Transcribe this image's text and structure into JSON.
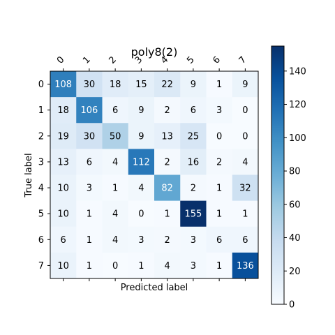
{
  "chart_data": {
    "type": "heatmap",
    "title": "poly8(2)",
    "xlabel": "Predicted label",
    "ylabel": "True label",
    "x_tick_labels": [
      "0",
      "1",
      "2",
      "3",
      "4",
      "5",
      "6",
      "7"
    ],
    "y_tick_labels": [
      "0",
      "1",
      "2",
      "3",
      "4",
      "5",
      "6",
      "7"
    ],
    "matrix": [
      [
        108,
        30,
        18,
        15,
        22,
        9,
        1,
        9
      ],
      [
        18,
        106,
        6,
        9,
        2,
        6,
        3,
        0
      ],
      [
        19,
        30,
        50,
        9,
        13,
        25,
        0,
        0
      ],
      [
        13,
        6,
        4,
        112,
        2,
        16,
        2,
        4
      ],
      [
        10,
        3,
        1,
        4,
        82,
        2,
        1,
        32
      ],
      [
        10,
        1,
        4,
        0,
        1,
        155,
        1,
        1
      ],
      [
        6,
        1,
        4,
        3,
        2,
        3,
        6,
        6
      ],
      [
        10,
        1,
        0,
        1,
        4,
        3,
        1,
        136
      ]
    ],
    "colormap": "Blues",
    "value_range": [
      0,
      155
    ],
    "colorbar_ticks": [
      0,
      20,
      40,
      60,
      80,
      100,
      120,
      140
    ],
    "colorbar_tick_labels": [
      "0",
      "20",
      "40",
      "60",
      "80",
      "100",
      "120",
      "140"
    ]
  }
}
